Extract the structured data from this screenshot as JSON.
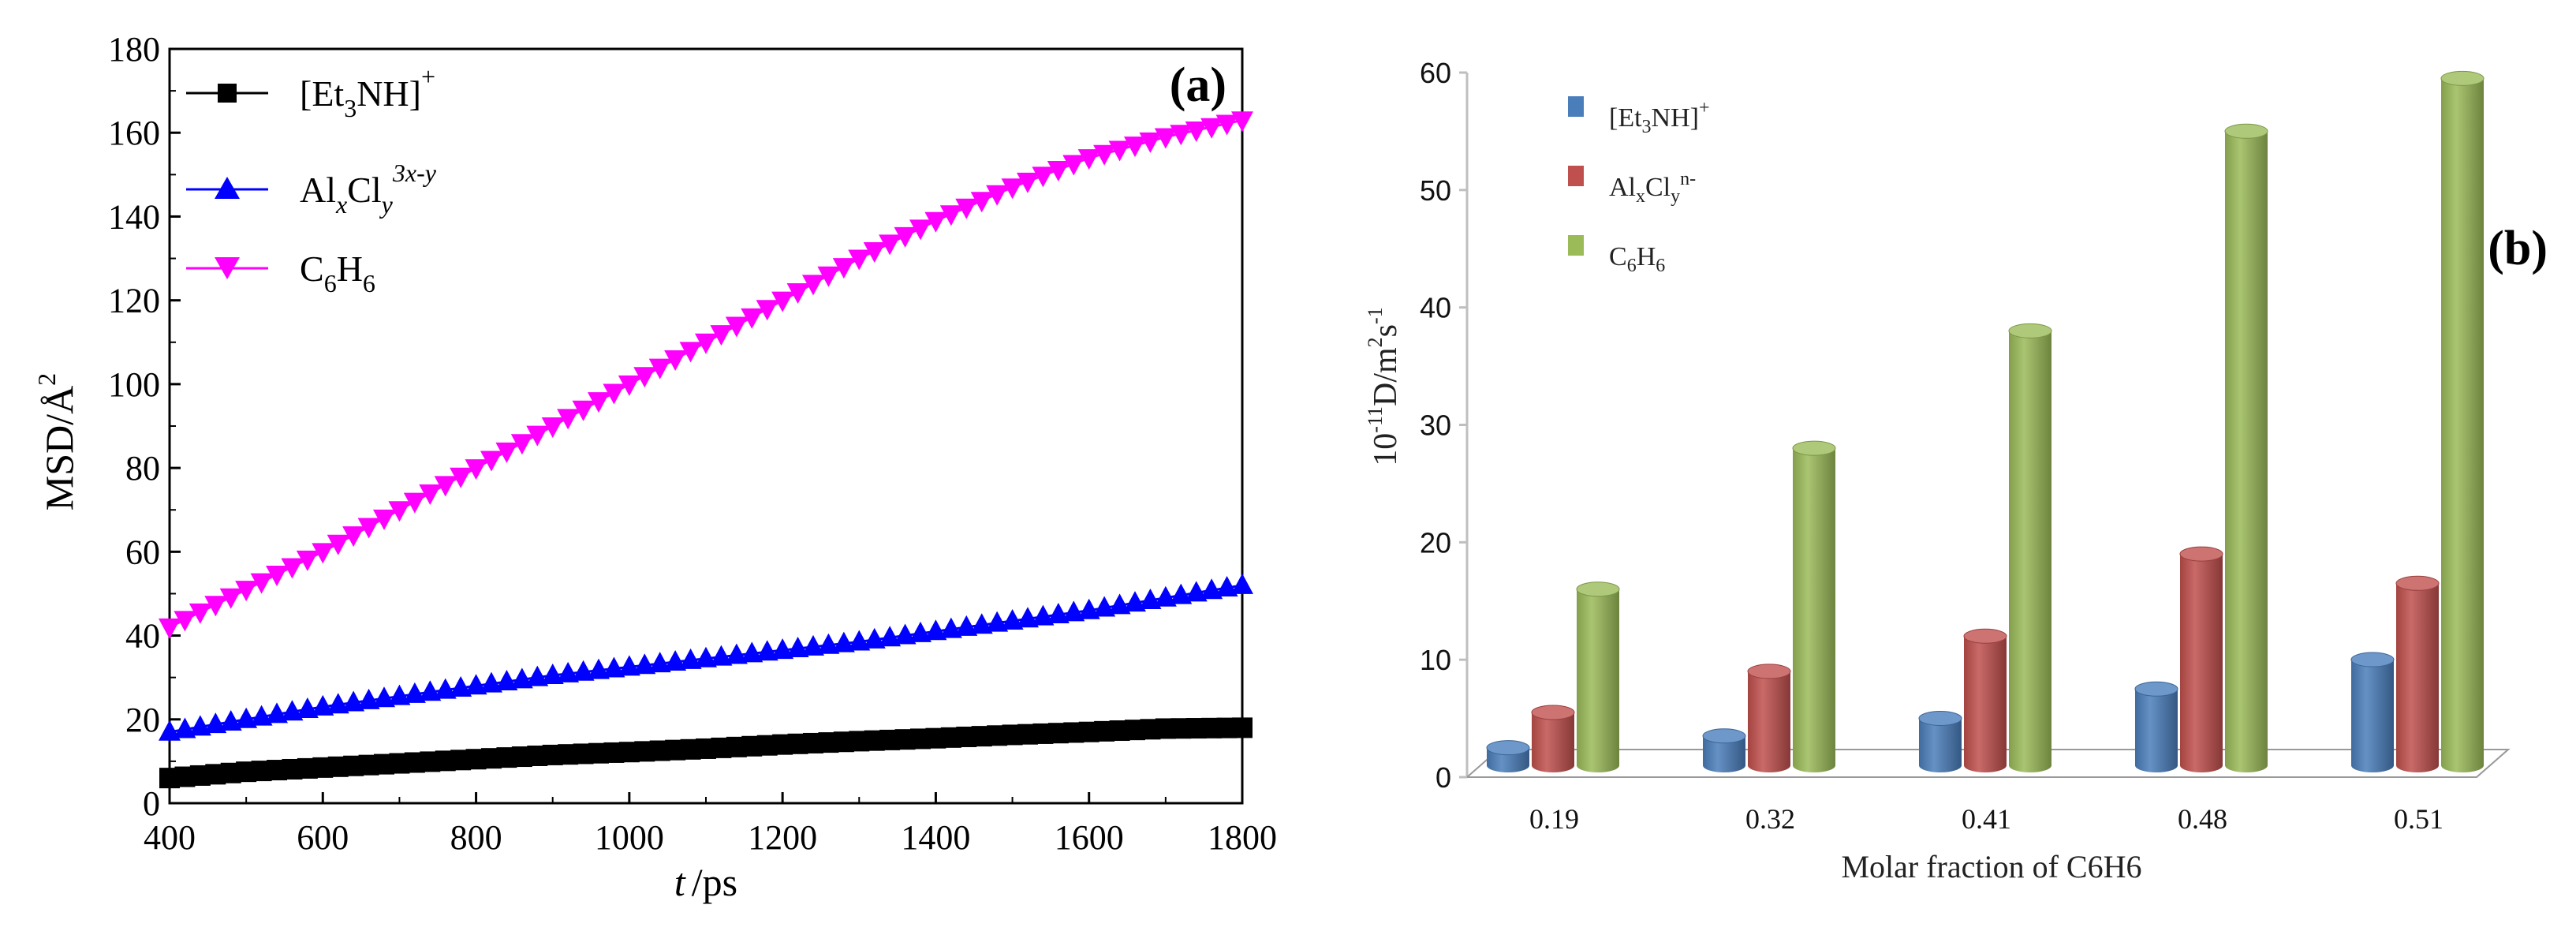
{
  "colors": {
    "black": "#000000",
    "blue": "#0000ff",
    "magenta": "#ff00ff",
    "bar_blue": "#4a7ebb",
    "bar_red": "#c0504d",
    "bar_green": "#9bbb59"
  },
  "chart_data": [
    {
      "type": "line",
      "panel_label": "(a)",
      "xlabel": "t",
      "xlabel_unit": "/ps",
      "ylabel": "MSD/Å",
      "ylabel_sup": "2",
      "xlim": [
        400,
        1800
      ],
      "ylim": [
        0,
        180
      ],
      "x_ticks": [
        "400",
        "600",
        "800",
        "1000",
        "1200",
        "1400",
        "1600",
        "1800"
      ],
      "y_ticks": [
        "0",
        "20",
        "40",
        "60",
        "80",
        "100",
        "120",
        "140",
        "160",
        "180"
      ],
      "legend_position": "top-left",
      "series": [
        {
          "name": "[Et3NH]+",
          "label_parts": {
            "base": "[Et",
            "sub": "3",
            "mid": "NH]",
            "sup": "+"
          },
          "marker": "square",
          "color": "#000000",
          "x": [
            400,
            500,
            600,
            700,
            800,
            900,
            1000,
            1100,
            1200,
            1300,
            1400,
            1500,
            1600,
            1700,
            1800
          ],
          "y": [
            6,
            7.5,
            8.5,
            9.5,
            10.5,
            11.5,
            12.2,
            13,
            14,
            14.8,
            15.5,
            16.3,
            17,
            17.8,
            18
          ]
        },
        {
          "name": "AlxCly3x-y",
          "label_parts": {
            "base": "Al",
            "sub1": "x",
            "mid": "Cl",
            "sub2": "y",
            "sup": "3x-y"
          },
          "marker": "triangle-up",
          "color": "#0000ff",
          "x": [
            400,
            500,
            600,
            700,
            800,
            900,
            1000,
            1100,
            1200,
            1300,
            1400,
            1500,
            1600,
            1700,
            1800
          ],
          "y": [
            17,
            20,
            23,
            25.5,
            28,
            30.5,
            32.5,
            34.5,
            36.5,
            38.5,
            41,
            43.5,
            46,
            49,
            52
          ]
        },
        {
          "name": "C6H6",
          "label_parts": {
            "base": "C",
            "sub1": "6",
            "mid": "H",
            "sub2": "6"
          },
          "marker": "triangle-down",
          "color": "#ff00ff",
          "x": [
            400,
            500,
            600,
            700,
            800,
            900,
            1000,
            1100,
            1200,
            1300,
            1400,
            1500,
            1600,
            1700,
            1800
          ],
          "y": [
            42,
            51,
            60,
            70,
            80,
            90,
            100,
            110,
            120,
            130,
            139,
            147,
            154,
            159,
            163
          ]
        }
      ]
    },
    {
      "type": "bar",
      "panel_label": "(b)",
      "xlabel": "Molar fraction of  C6H6",
      "ylabel_parts": {
        "base": "10",
        "sup1": "-11",
        "mid": "D/m",
        "sup2": "2",
        "mid2": "s",
        "sup3": "-1"
      },
      "ylim": [
        0,
        60
      ],
      "y_ticks": [
        "0",
        "10",
        "20",
        "30",
        "40",
        "50",
        "60"
      ],
      "categories": [
        "0.19",
        "0.32",
        "0.41",
        "0.48",
        "0.51"
      ],
      "legend_position": "top-left",
      "series": [
        {
          "name": "[Et3NH]+",
          "label_parts": {
            "base": "[Et",
            "sub": "3",
            "mid": "NH]",
            "sup": "+"
          },
          "color": "#4a7ebb",
          "values": [
            1.5,
            2.5,
            4,
            6.5,
            9
          ]
        },
        {
          "name": "AlxClyn-",
          "label_parts": {
            "base": "Al",
            "sub1": "x",
            "mid": "Cl",
            "sub2": "y",
            "sup": "n-"
          },
          "color": "#c0504d",
          "values": [
            4.5,
            8,
            11,
            18,
            15.5
          ]
        },
        {
          "name": "C6H6",
          "label_parts": {
            "base": "C",
            "sub1": "6",
            "mid": "H",
            "sub2": "6"
          },
          "color": "#9bbb59",
          "values": [
            15,
            27,
            37,
            54,
            58.5
          ]
        }
      ]
    }
  ]
}
